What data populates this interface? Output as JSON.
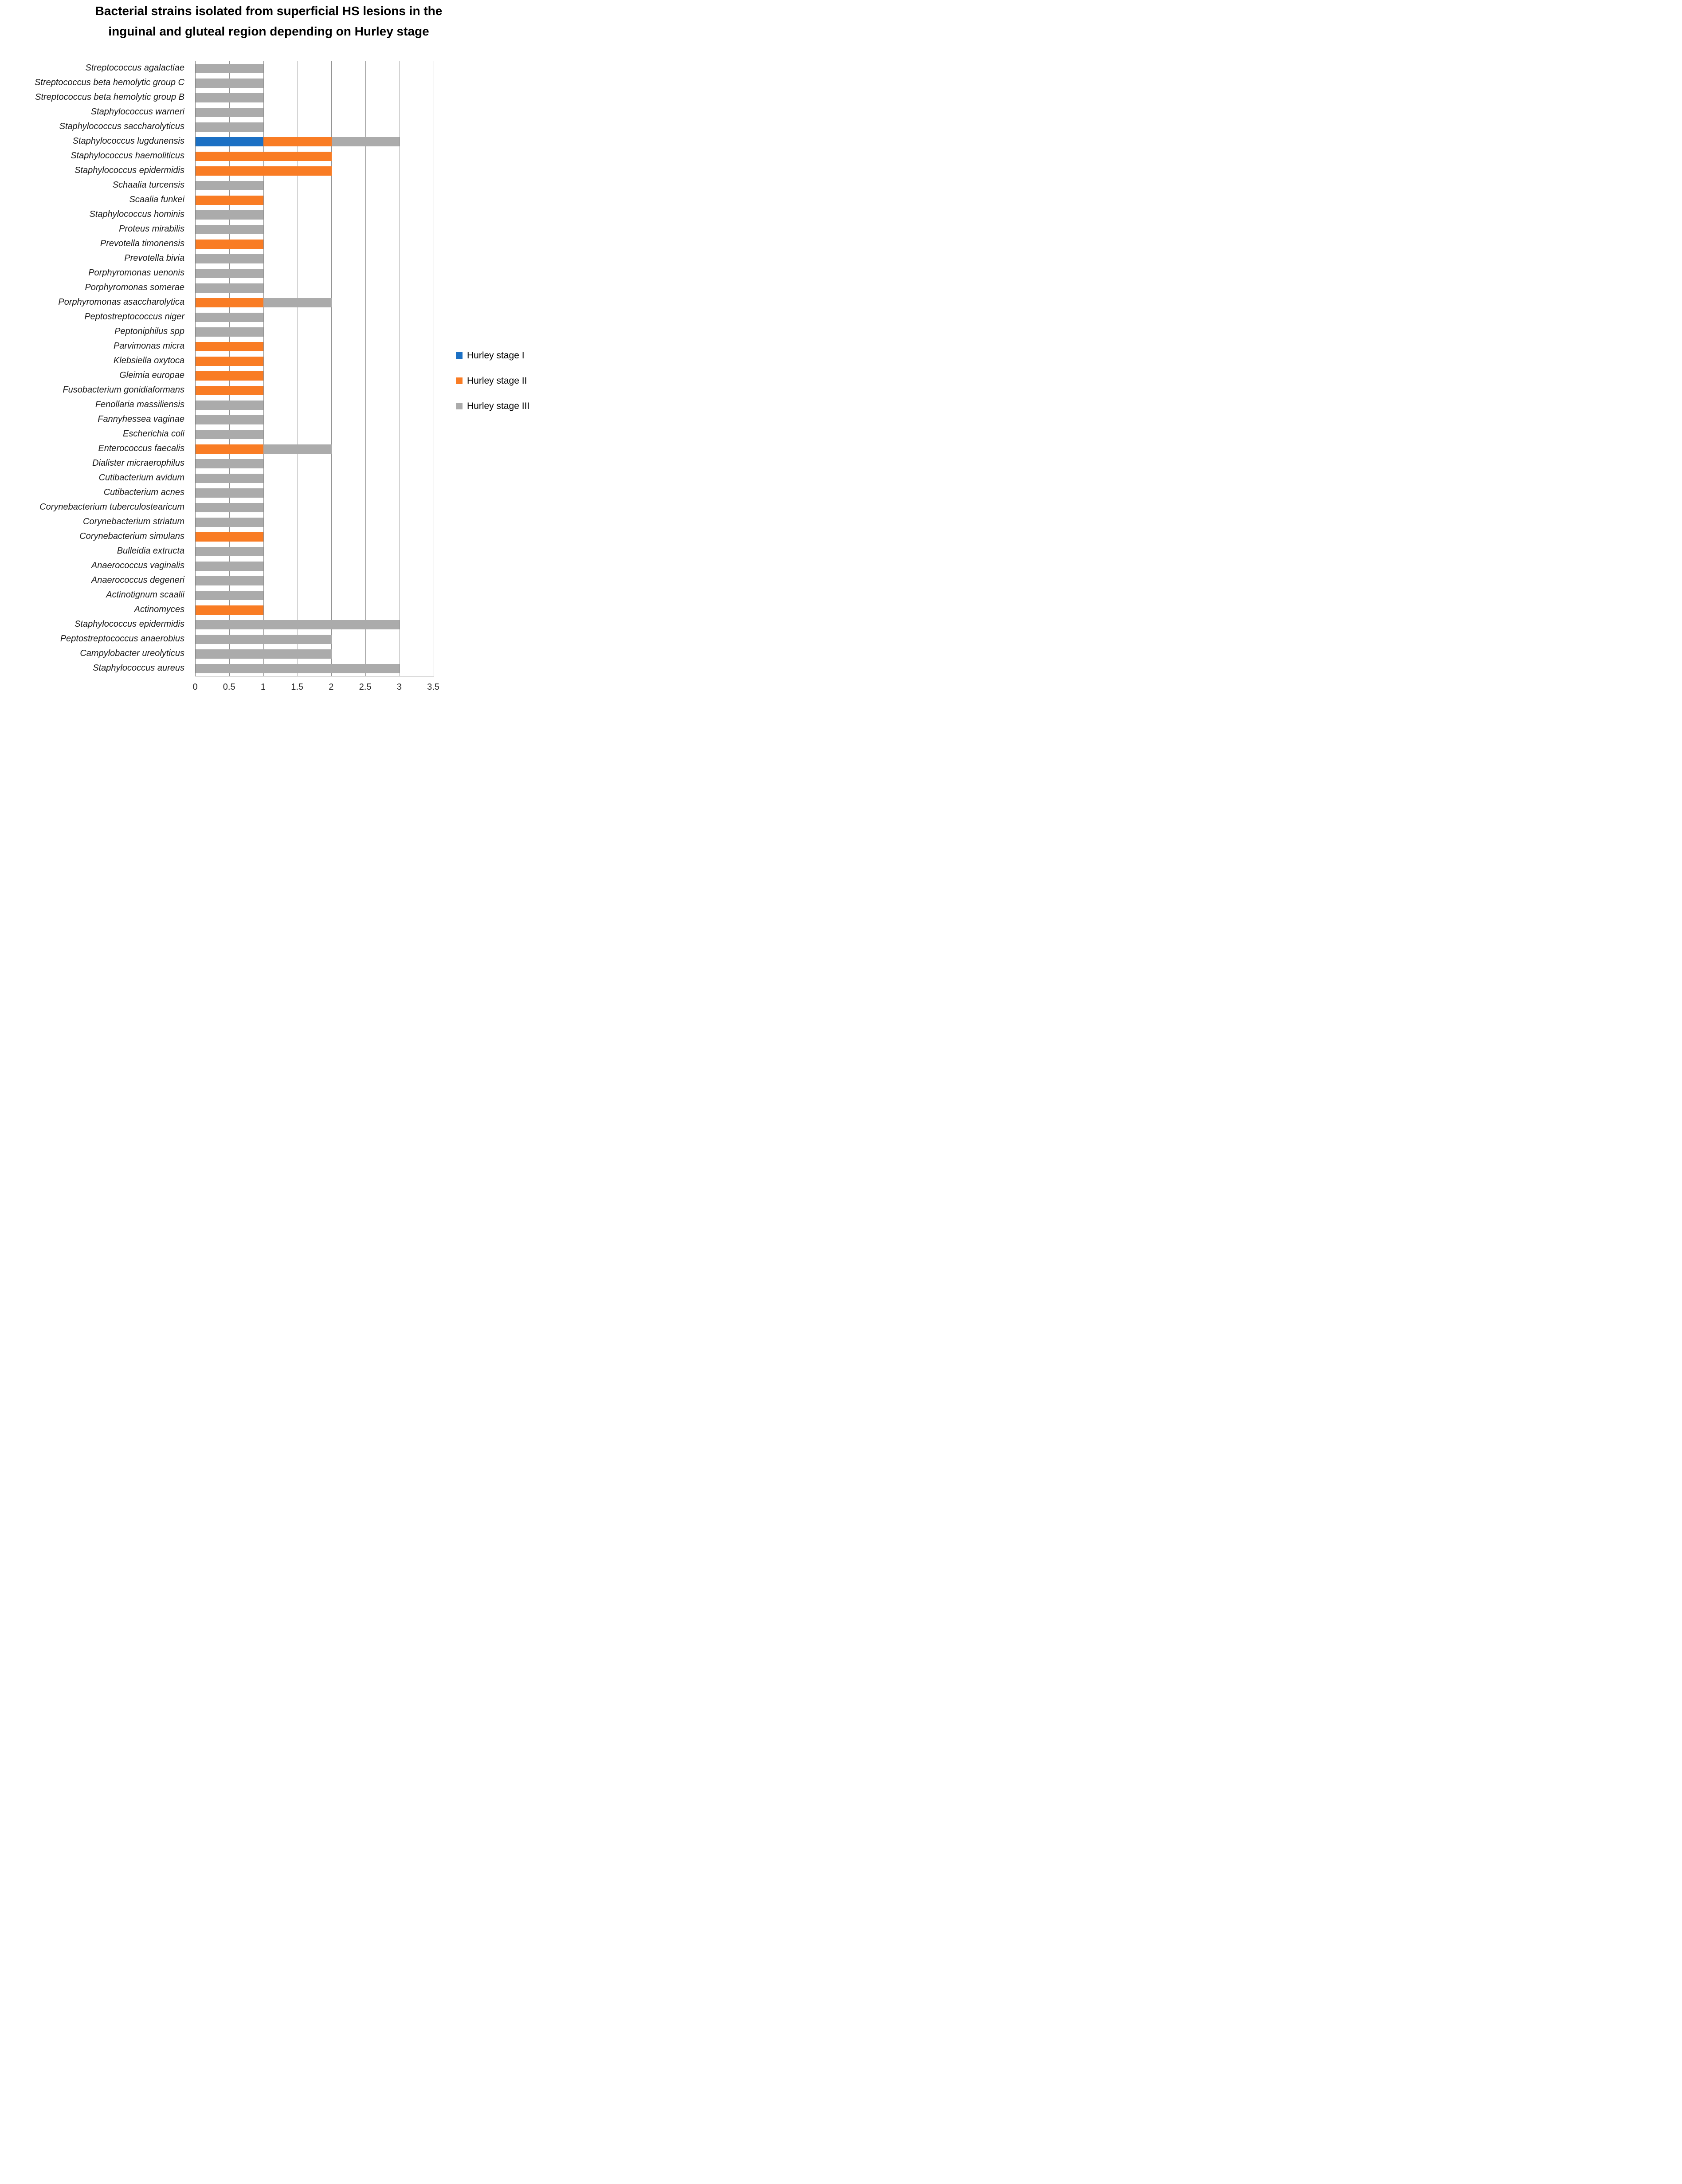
{
  "title": {
    "line1": "Bacterial strains isolated from superficial HS lesions in the",
    "line2": "inguinal and gluteal region depending on Hurley stage"
  },
  "chart_data": {
    "type": "bar",
    "orientation": "horizontal",
    "stacked": true,
    "title": "Bacterial strains isolated from superficial HS lesions in the inguinal and gluteal region depending on Hurley stage",
    "xlabel": "",
    "ylabel": "",
    "xlim": [
      0,
      3.5
    ],
    "xticks": [
      "0",
      "0.5",
      "1",
      "1.5",
      "2",
      "2.5",
      "3",
      "3.5"
    ],
    "grid": "vertical",
    "legend_position": "right",
    "categories": [
      "Streptococcus agalactiae",
      "Streptococcus beta hemolytic group C",
      "Streptococcus beta hemolytic group B",
      "Staphylococcus warneri",
      "Staphylococcus saccharolyticus",
      "Staphylococcus lugdunensis",
      "Staphylococcus haemoliticus",
      "Staphylococcus epidermidis",
      "Schaalia turcensis",
      "Scaalia funkei",
      "Staphylococcus hominis",
      "Proteus mirabilis",
      "Prevotella timonensis",
      "Prevotella bivia",
      "Porphyromonas uenonis",
      "Porphyromonas somerae",
      "Porphyromonas asaccharolytica",
      "Peptostreptococcus niger",
      "Peptoniphilus spp",
      "Parvimonas micra",
      "Klebsiella oxytoca",
      "Gleimia europae",
      "Fusobacterium gonidiaformans",
      "Fenollaria massiliensis",
      "Fannyhessea vaginae",
      "Escherichia coli",
      "Enterococcus faecalis",
      "Dialister micraerophilus",
      "Cutibacterium avidum",
      "Cutibacterium acnes",
      "Corynebacterium tuberculostearicum",
      "Corynebacterium striatum",
      "Corynebacterium simulans",
      "Bulleidia extructa",
      "Anaerococcus vaginalis",
      "Anaerococcus degeneri",
      "Actinotignum scaalii",
      "Actinomyces",
      "Staphylococcus epidermidis",
      "Peptostreptococcus anaerobius",
      "Campylobacter ureolyticus",
      "Staphylococcus aureus"
    ],
    "series": [
      {
        "name": "Hurley stage I",
        "color": "#1B70C4",
        "values": [
          0,
          0,
          0,
          0,
          0,
          1,
          0,
          0,
          0,
          0,
          0,
          0,
          0,
          0,
          0,
          0,
          0,
          0,
          0,
          0,
          0,
          0,
          0,
          0,
          0,
          0,
          0,
          0,
          0,
          0,
          0,
          0,
          0,
          0,
          0,
          0,
          0,
          0,
          0,
          0,
          0,
          0
        ]
      },
      {
        "name": "Hurley stage II",
        "color": "#F97C24",
        "values": [
          0,
          0,
          0,
          0,
          0,
          1,
          2,
          2,
          0,
          1,
          0,
          0,
          1,
          0,
          0,
          0,
          1,
          0,
          0,
          1,
          1,
          1,
          1,
          0,
          0,
          0,
          1,
          0,
          0,
          0,
          0,
          0,
          1,
          0,
          0,
          0,
          0,
          1,
          0,
          0,
          0,
          0
        ]
      },
      {
        "name": "Hurley stage III",
        "color": "#ABABAB",
        "values": [
          1,
          1,
          1,
          1,
          1,
          1,
          0,
          0,
          1,
          0,
          1,
          1,
          0,
          1,
          1,
          1,
          1,
          1,
          1,
          0,
          0,
          0,
          0,
          1,
          1,
          1,
          1,
          1,
          1,
          1,
          1,
          1,
          0,
          1,
          1,
          1,
          1,
          0,
          3,
          2,
          2,
          3
        ]
      }
    ]
  }
}
